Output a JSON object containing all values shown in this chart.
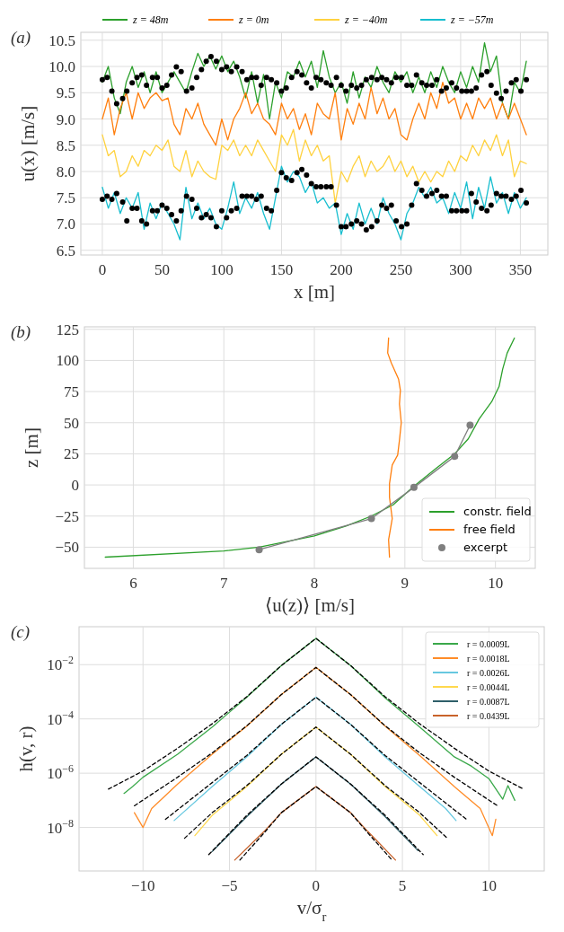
{
  "chart_data": [
    {
      "type": "line",
      "title": "(a)",
      "xlabel": "x [m]",
      "ylabel": "u(x) [m/s]",
      "xlim": [
        -18,
        373
      ],
      "ylim": [
        6.41,
        10.65
      ],
      "xticks": [
        0,
        50,
        100,
        150,
        200,
        250,
        300,
        350
      ],
      "yticks": [
        {
          "value": 6.5,
          "label": "6.5"
        },
        {
          "value": 7,
          "label": "7.0"
        },
        {
          "value": 7.5,
          "label": "7.5"
        },
        {
          "value": 8,
          "label": "8.0"
        },
        {
          "value": 8.5,
          "label": "8.5"
        },
        {
          "value": 9,
          "label": "9.0"
        },
        {
          "value": 9.5,
          "label": "9.5"
        },
        {
          "value": 10,
          "label": "10.0"
        },
        {
          "value": 10.5,
          "label": "10.5"
        }
      ],
      "grid": true,
      "legend": "top",
      "x": [
        0,
        5,
        10,
        15,
        20,
        25,
        30,
        35,
        40,
        45,
        50,
        55,
        60,
        65,
        70,
        75,
        80,
        85,
        90,
        95,
        100,
        105,
        110,
        115,
        120,
        125,
        130,
        135,
        140,
        145,
        150,
        155,
        160,
        165,
        170,
        175,
        180,
        185,
        190,
        195,
        200,
        205,
        210,
        215,
        220,
        225,
        230,
        235,
        240,
        245,
        250,
        255,
        260,
        265,
        270,
        275,
        280,
        285,
        290,
        295,
        300,
        305,
        310,
        315,
        320,
        325,
        330,
        335,
        340,
        345,
        350,
        355
      ],
      "series": [
        {
          "name": "z = 48m",
          "color": "#2ca02c",
          "values": [
            9.7,
            10.0,
            9.4,
            9.1,
            9.7,
            10.0,
            9.6,
            9.9,
            9.5,
            9.9,
            9.5,
            9.7,
            9.9,
            9.7,
            9.5,
            9.9,
            10.25,
            10.0,
            10.2,
            9.95,
            10.2,
            9.9,
            10.1,
            9.8,
            9.4,
            9.9,
            9.3,
            9.85,
            9.0,
            9.7,
            9.4,
            9.9,
            9.8,
            10.1,
            9.8,
            10.1,
            9.6,
            10.3,
            9.8,
            9.5,
            9.7,
            9.3,
            9.9,
            9.4,
            9.8,
            9.6,
            10.0,
            9.7,
            9.5,
            9.9,
            9.7,
            9.9,
            9.5,
            9.8,
            9.5,
            9.9,
            9.6,
            10.0,
            9.7,
            9.5,
            9.9,
            9.6,
            10.0,
            9.7,
            10.45,
            9.9,
            10.2,
            9.3,
            9.0,
            9.7,
            9.5,
            10.1
          ]
        },
        {
          "name": "z = 0m",
          "color": "#ff7f0e",
          "values": [
            9.0,
            9.4,
            8.7,
            9.2,
            9.5,
            9.0,
            9.5,
            9.2,
            9.4,
            9.5,
            9.35,
            9.4,
            8.9,
            8.7,
            9.2,
            9.0,
            9.3,
            8.9,
            8.7,
            8.5,
            9.0,
            8.6,
            9.0,
            9.2,
            9.5,
            9.1,
            9.3,
            9.0,
            8.9,
            8.7,
            9.3,
            9.0,
            9.2,
            8.8,
            9.1,
            8.7,
            9.3,
            9.1,
            9.0,
            9.5,
            8.6,
            9.2,
            8.9,
            9.3,
            9.0,
            9.6,
            9.1,
            9.4,
            9.0,
            9.2,
            8.7,
            8.6,
            9.0,
            9.3,
            9.0,
            9.5,
            9.2,
            9.7,
            9.3,
            9.4,
            9.0,
            9.3,
            9.0,
            9.4,
            9.2,
            9.4,
            9.0,
            9.3,
            9.0,
            9.3,
            9.0,
            8.7
          ]
        },
        {
          "name": "z = −40m",
          "color": "#ffd23f",
          "values": [
            8.7,
            8.3,
            8.4,
            7.9,
            8.0,
            8.3,
            8.1,
            8.4,
            8.3,
            8.5,
            8.4,
            8.6,
            8.1,
            8.0,
            8.4,
            7.9,
            8.2,
            8.0,
            7.9,
            7.85,
            8.5,
            8.4,
            8.6,
            8.3,
            8.5,
            8.3,
            8.6,
            8.4,
            8.2,
            8.0,
            8.7,
            8.5,
            8.8,
            8.2,
            8.6,
            8.3,
            8.5,
            8.2,
            8.3,
            7.4,
            8.0,
            7.8,
            8.1,
            8.3,
            7.9,
            8.2,
            8.0,
            8.1,
            8.3,
            8.0,
            8.2,
            7.9,
            8.1,
            7.8,
            8.0,
            7.8,
            8.0,
            7.9,
            8.2,
            8.0,
            8.3,
            8.2,
            8.5,
            8.3,
            8.6,
            8.4,
            8.7,
            8.3,
            8.6,
            7.9,
            8.2,
            8.15
          ]
        },
        {
          "name": "z = −57m",
          "color": "#17becf",
          "values": [
            7.7,
            7.3,
            7.6,
            7.2,
            7.5,
            7.3,
            7.6,
            6.9,
            7.4,
            7.1,
            7.4,
            7.2,
            7.0,
            6.7,
            7.7,
            7.1,
            7.4,
            7.1,
            7.3,
            7.0,
            6.9,
            7.3,
            7.8,
            7.2,
            7.5,
            7.3,
            7.6,
            7.2,
            6.9,
            7.5,
            8.1,
            7.8,
            8.0,
            7.9,
            7.6,
            7.8,
            7.4,
            7.5,
            7.3,
            7.4,
            6.8,
            7.2,
            6.9,
            7.4,
            7.0,
            7.3,
            7.0,
            7.5,
            7.2,
            7.0,
            6.7,
            7.2,
            7.4,
            7.7,
            7.5,
            7.7,
            7.4,
            7.5,
            7.2,
            7.6,
            7.3,
            7.8,
            7.1,
            7.7,
            7.3,
            7.9,
            7.4,
            7.6,
            7.2,
            7.6,
            7.3,
            7.5
          ]
        },
        {
          "type": "scatter",
          "color": "#000000",
          "x": [
            0,
            4,
            8,
            12,
            17,
            20.5,
            25,
            29,
            33,
            37,
            42,
            46,
            50,
            54,
            58,
            62,
            66,
            70.5,
            75,
            79,
            83,
            87,
            91,
            95.5,
            100,
            104,
            108,
            112.5,
            117,
            121,
            125,
            129,
            133,
            137.5,
            141.5,
            146,
            150,
            154,
            158.5,
            163,
            167,
            171,
            175,
            179,
            183,
            187.5,
            191.5,
            196,
            200,
            204,
            208.5,
            213,
            217,
            221,
            225.5,
            230,
            234,
            238,
            242,
            246,
            250.5,
            255,
            259,
            263,
            267.5,
            271.5,
            276,
            280,
            284,
            288,
            292.5,
            296.5,
            301,
            305,
            309,
            313,
            317.5,
            322,
            325.5,
            330,
            334,
            338,
            342.5,
            346.5,
            350.5,
            355
          ],
          "values": [
            9.75,
            9.79,
            9.53,
            9.29,
            9.39,
            9.53,
            9.69,
            9.79,
            9.84,
            9.64,
            9.79,
            9.79,
            9.59,
            9.64,
            9.84,
            9.99,
            9.9,
            9.53,
            9.59,
            9.79,
            9.94,
            10.1,
            10.19,
            10.1,
            9.94,
            9.99,
            9.9,
            9.99,
            9.9,
            9.75,
            9.79,
            9.79,
            9.64,
            9.79,
            9.75,
            9.69,
            9.53,
            9.59,
            9.79,
            9.9,
            9.84,
            9.69,
            9.59,
            9.79,
            9.75,
            9.69,
            9.64,
            9.79,
            9.64,
            9.53,
            9.64,
            9.59,
            9.64,
            9.75,
            9.79,
            9.75,
            9.79,
            9.75,
            9.69,
            9.79,
            9.79,
            9.64,
            9.64,
            9.84,
            9.69,
            9.64,
            9.64,
            9.75,
            9.53,
            9.59,
            9.69,
            9.59,
            9.53,
            9.53,
            9.53,
            9.59,
            9.84,
            9.9,
            9.64,
            9.49,
            9.39,
            9.53,
            9.69,
            9.75,
            9.53,
            9.75
          ]
        },
        {
          "type": "scatter",
          "color": "#000000",
          "x": [
            0,
            4,
            8,
            12,
            17,
            20.5,
            25,
            29,
            33,
            37,
            42,
            46,
            50,
            54,
            58,
            62,
            66,
            70.5,
            75,
            79,
            83,
            87,
            91,
            95.5,
            100,
            104,
            108,
            112.5,
            117,
            121,
            125,
            129,
            133,
            137.5,
            141.5,
            146,
            150,
            154,
            158.5,
            163,
            167,
            171,
            175,
            179,
            183,
            187.5,
            191.5,
            196,
            200,
            204,
            208.5,
            213,
            217,
            221,
            225.5,
            230,
            234,
            238,
            242,
            246,
            250.5,
            255,
            259,
            263,
            267.5,
            271.5,
            276,
            280,
            284,
            288,
            292.5,
            296.5,
            301,
            305,
            309,
            313,
            317.5,
            322,
            325.5,
            330,
            334,
            338,
            342.5,
            346.5,
            350.5,
            355
          ],
          "values": [
            7.47,
            7.53,
            7.47,
            7.58,
            7.42,
            7.06,
            7.3,
            7.3,
            7.06,
            7.0,
            7.25,
            7.25,
            7.36,
            7.3,
            7.18,
            7.06,
            7.25,
            7.53,
            7.47,
            7.3,
            7.12,
            7.18,
            7.12,
            6.95,
            7.25,
            7.12,
            7.25,
            7.3,
            7.53,
            7.53,
            7.53,
            7.47,
            7.53,
            7.3,
            7.25,
            7.64,
            7.98,
            7.88,
            7.83,
            7.98,
            8.04,
            7.93,
            7.77,
            7.71,
            7.71,
            7.71,
            7.71,
            7.36,
            6.95,
            6.95,
            7.0,
            7.06,
            7.0,
            6.89,
            6.95,
            7.06,
            7.36,
            7.3,
            7.36,
            7.06,
            6.95,
            7.0,
            7.36,
            7.77,
            7.64,
            7.53,
            7.58,
            7.64,
            7.53,
            7.53,
            7.25,
            7.25,
            7.25,
            7.25,
            7.58,
            7.42,
            7.3,
            7.25,
            7.36,
            7.58,
            7.53,
            7.53,
            7.47,
            7.53,
            7.64,
            7.4
          ]
        }
      ]
    },
    {
      "type": "line",
      "title": "(b)",
      "xlabel": "⟨u(z)⟩ [m/s]",
      "ylabel": "z [m]",
      "xlim": [
        5.46,
        10.44
      ],
      "ylim": [
        -67,
        127
      ],
      "xticks": [
        6,
        7,
        8,
        9,
        10
      ],
      "yticks": [
        {
          "value": -50,
          "label": "−50"
        },
        {
          "value": -25,
          "label": "−25"
        },
        0,
        25,
        50,
        75,
        100,
        125
      ],
      "grid": true,
      "legend": "bottom right",
      "series": [
        {
          "name": "constr. field",
          "color": "#2ca02c",
          "x": [
            5.69,
            7.0,
            7.39,
            8.0,
            8.35,
            8.63,
            8.87,
            9.1,
            9.34,
            9.55,
            9.7,
            9.82,
            9.96,
            10.04,
            10.08,
            10.13,
            10.21
          ],
          "values": [
            -58,
            -53,
            -50,
            -41,
            -33,
            -25,
            -16,
            -1,
            13,
            25,
            37,
            53,
            67,
            79,
            93,
            106,
            118
          ]
        },
        {
          "name": "free field",
          "color": "#ff7f0e",
          "x": [
            8.82,
            8.81,
            8.85,
            8.93,
            8.95,
            8.94,
            8.96,
            8.94,
            8.92,
            8.86,
            8.83,
            8.83,
            8.86,
            8.82,
            8.83
          ],
          "values": [
            118,
            106,
            98,
            85,
            76,
            65,
            50,
            36,
            24,
            16,
            1,
            -10,
            -27,
            -44,
            -58
          ]
        },
        {
          "color": "#7f7f7f",
          "x": [
            7.39,
            8.63,
            9.1,
            9.55,
            9.72
          ],
          "values": [
            -52,
            -27,
            -2,
            23,
            48
          ]
        },
        {
          "type": "scatter",
          "name": "excerpt",
          "color": "#7f7f7f",
          "x": [
            7.39,
            8.63,
            9.1,
            9.55,
            9.72
          ],
          "values": [
            -52,
            -27,
            -2,
            23,
            48
          ]
        }
      ]
    },
    {
      "type": "line",
      "title": "(c)",
      "xlabel": "v/σ$_{r}$",
      "ylabel": "h(v, r)",
      "log": "y",
      "xlim": [
        -13.7,
        13.2
      ],
      "ylim": [
        2.5e-10,
        0.25
      ],
      "xticks": [
        {
          "value": -10,
          "label": "−10"
        },
        {
          "value": -5,
          "label": "−5"
        },
        0,
        5,
        10
      ],
      "yticks": [
        {
          "value": 1e-08,
          "label": "10$^{−8}$"
        },
        {
          "value": 1e-06,
          "label": "10$^{−6}$"
        },
        {
          "value": 0.0001,
          "label": "10$^{−4}$"
        },
        {
          "value": 0.01,
          "label": "10$^{−2}$"
        }
      ],
      "grid": true,
      "legend": "top right",
      "series": [
        {
          "name": "r = 0.0009L",
          "color": "#3aa84a",
          "x": [
            -11.1,
            -10.6,
            -10,
            -8,
            -6,
            -4,
            -2,
            0,
            2,
            4,
            6,
            8,
            9,
            10,
            10.8,
            11.1,
            11.5
          ],
          "values": [
            1.8e-07,
            3.2e-07,
            7.1e-07,
            5e-06,
            5e-05,
            0.00063,
            0.0093,
            0.093,
            0.0093,
            0.0006,
            5e-05,
            4e-06,
            1.8e-06,
            6.3e-07,
            1.1e-07,
            3.5e-07,
            1e-07
          ]
        },
        {
          "name": "r = 0.0018L",
          "color": "#ff8c28",
          "x": [
            -10.5,
            -10,
            -9.5,
            -8,
            -6,
            -4,
            -2,
            0,
            2,
            4,
            6,
            8,
            9.5,
            10.2,
            10.4
          ],
          "values": [
            3.5e-08,
            1e-08,
            5e-08,
            4e-07,
            5e-06,
            5.4e-05,
            0.00079,
            0.0079,
            0.00079,
            5.4e-05,
            4.5e-06,
            3.2e-07,
            5e-08,
            5e-09,
            2e-08
          ]
        },
        {
          "name": "r = 0.0026L",
          "color": "#67c8e0",
          "x": [
            -8.2,
            -6,
            -4,
            -2,
            0,
            2,
            4,
            6,
            7.5,
            8.1
          ],
          "values": [
            1.8e-08,
            3.2e-07,
            4e-06,
            6.3e-05,
            0.00063,
            6.3e-05,
            4e-06,
            3.2e-07,
            5e-08,
            1.8e-08
          ]
        },
        {
          "name": "r = 0.0044L",
          "color": "#ffd84d",
          "x": [
            -7,
            -6,
            -4,
            -2,
            0,
            2,
            4,
            6,
            7
          ],
          "values": [
            5e-09,
            2.8e-08,
            3.2e-07,
            5e-06,
            5e-05,
            5e-06,
            3.2e-07,
            2.8e-08,
            5e-09
          ]
        },
        {
          "name": "r = 0.0087L",
          "color": "#2f5f6a",
          "x": [
            -6,
            -4,
            -2,
            0,
            2,
            4,
            5.9
          ],
          "values": [
            1.3e-09,
            2.5e-08,
            4e-07,
            4e-06,
            4e-07,
            2.5e-08,
            1.4e-09
          ]
        },
        {
          "name": "r = 0.0439L",
          "color": "#c8622a",
          "x": [
            -4.7,
            -3,
            -2,
            0,
            2,
            3,
            4.6
          ],
          "values": [
            6.3e-10,
            7.1e-09,
            3.5e-08,
            3.2e-07,
            3.5e-08,
            7.1e-09,
            6.3e-10
          ]
        },
        {
          "color": "#000000",
          "line_style": "dashed",
          "x": [
            -12,
            -10,
            -8,
            -6,
            -4,
            -2,
            0,
            2,
            4,
            6,
            8,
            10,
            12
          ],
          "values": [
            2.6e-07,
            1.2e-06,
            8.3e-06,
            6.6e-05,
            0.00066,
            0.0093,
            0.093,
            0.0093,
            0.00066,
            6.6e-05,
            8.3e-06,
            1.2e-06,
            2.6e-07
          ]
        },
        {
          "color": "#000000",
          "line_style": "dashed",
          "x": [
            -10.5,
            -8,
            -6,
            -4,
            -2,
            0,
            2,
            4,
            6,
            8,
            10.5
          ],
          "values": [
            6.3e-08,
            7.1e-07,
            5.6e-06,
            5.6e-05,
            0.00079,
            0.0079,
            0.00079,
            5.6e-05,
            5.6e-06,
            7.1e-07,
            6.3e-08
          ]
        },
        {
          "color": "#000000",
          "line_style": "dashed",
          "x": [
            -8.7,
            -6,
            -4,
            -2,
            0,
            2,
            4,
            6,
            8.7
          ],
          "values": [
            2e-08,
            4.5e-07,
            4.5e-06,
            6.3e-05,
            0.00063,
            6.3e-05,
            4.5e-06,
            4.5e-07,
            2e-08
          ]
        },
        {
          "color": "#000000",
          "line_style": "dashed",
          "x": [
            -7.6,
            -6,
            -4,
            -2,
            0,
            2,
            4,
            6,
            7.6
          ],
          "values": [
            4e-09,
            3.5e-08,
            3.5e-07,
            5e-06,
            5e-05,
            5e-06,
            3.5e-07,
            3.5e-08,
            4e-09
          ]
        },
        {
          "color": "#000000",
          "line_style": "dashed",
          "x": [
            -6.2,
            -4,
            -2,
            0,
            2,
            4,
            6.2
          ],
          "values": [
            1e-09,
            2.8e-08,
            4e-07,
            4e-06,
            4e-07,
            2.8e-08,
            1e-09
          ]
        },
        {
          "color": "#000000",
          "line_style": "dashed",
          "x": [
            -4.4,
            -3,
            -2,
            0,
            2,
            3,
            4.4
          ],
          "values": [
            6.3e-10,
            6.3e-09,
            3.5e-08,
            3.2e-07,
            3.5e-08,
            6.3e-09,
            6.3e-10
          ]
        }
      ]
    }
  ]
}
